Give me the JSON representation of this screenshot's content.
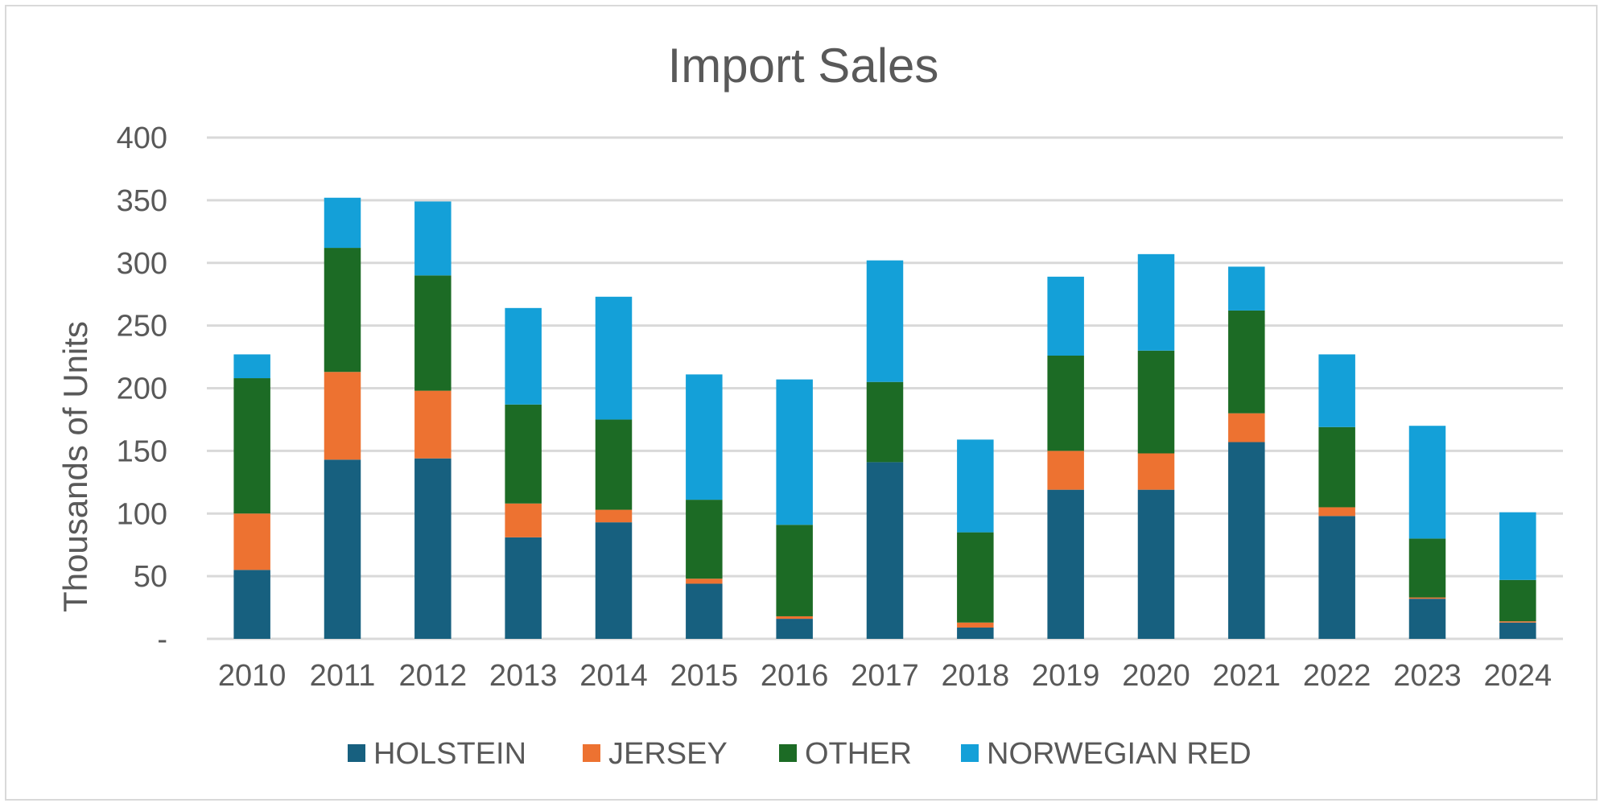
{
  "chart_data": {
    "type": "bar",
    "stacked": true,
    "title": "Import Sales",
    "ylabel": "Thousands of Units",
    "xlabel": "",
    "ylim": [
      0,
      400
    ],
    "yticks": [
      {
        "value": 0,
        "label": "-"
      },
      {
        "value": 50,
        "label": "50"
      },
      {
        "value": 100,
        "label": "100"
      },
      {
        "value": 150,
        "label": "150"
      },
      {
        "value": 200,
        "label": "200"
      },
      {
        "value": 250,
        "label": "250"
      },
      {
        "value": 300,
        "label": "300"
      },
      {
        "value": 350,
        "label": "350"
      },
      {
        "value": 400,
        "label": "400"
      }
    ],
    "grid": true,
    "legend_position": "bottom",
    "categories": [
      "2010",
      "2011",
      "2012",
      "2013",
      "2014",
      "2015",
      "2016",
      "2017",
      "2018",
      "2019",
      "2020",
      "2021",
      "2022",
      "2023",
      "2024"
    ],
    "series": [
      {
        "name": "HOLSTEIN",
        "color": "#17607f",
        "values": [
          55,
          143,
          144,
          81,
          93,
          44,
          16,
          141,
          9,
          119,
          119,
          157,
          98,
          32,
          13
        ]
      },
      {
        "name": "JERSEY",
        "color": "#ed7231",
        "values": [
          45,
          70,
          54,
          27,
          10,
          4,
          2,
          0,
          4,
          31,
          29,
          23,
          7,
          1,
          1
        ]
      },
      {
        "name": "OTHER",
        "color": "#1c6b25",
        "values": [
          108,
          99,
          92,
          79,
          72,
          63,
          73,
          64,
          72,
          76,
          82,
          82,
          64,
          47,
          33
        ]
      },
      {
        "name": "NORWEGIAN RED",
        "color": "#14a0d8",
        "values": [
          19,
          40,
          59,
          77,
          98,
          100,
          116,
          97,
          74,
          63,
          77,
          35,
          58,
          90,
          54
        ]
      }
    ]
  }
}
